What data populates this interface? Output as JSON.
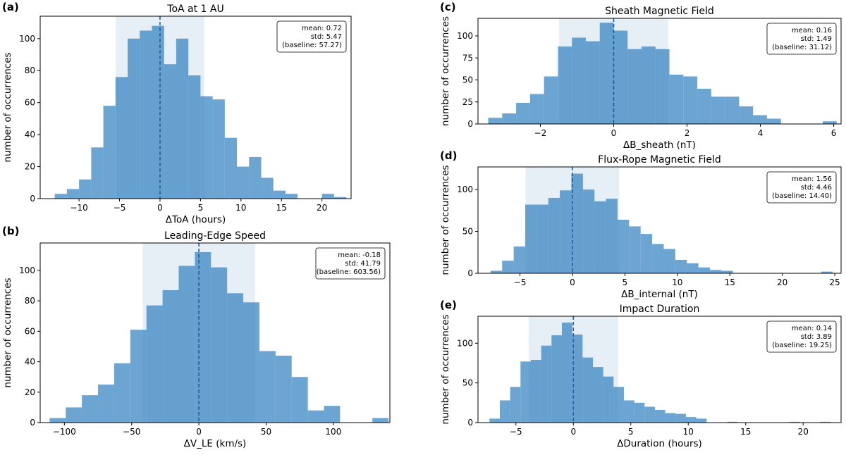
{
  "chart_data": [
    {
      "type": "bar",
      "panel_label": "(a)",
      "title": "ToA at 1 AU",
      "xlabel": "ΔToA (hours)",
      "ylabel": "number of occurrences",
      "bin_width": 1.5,
      "bins": [
        {
          "x": -13.0,
          "count": 3
        },
        {
          "x": -11.5,
          "count": 6
        },
        {
          "x": -10.0,
          "count": 12
        },
        {
          "x": -8.5,
          "count": 32
        },
        {
          "x": -7.0,
          "count": 58
        },
        {
          "x": -5.5,
          "count": 76
        },
        {
          "x": -4.0,
          "count": 100
        },
        {
          "x": -2.5,
          "count": 105
        },
        {
          "x": -1.0,
          "count": 108
        },
        {
          "x": 0.5,
          "count": 84
        },
        {
          "x": 2.0,
          "count": 100
        },
        {
          "x": 3.5,
          "count": 77
        },
        {
          "x": 5.0,
          "count": 64
        },
        {
          "x": 6.5,
          "count": 62
        },
        {
          "x": 8.0,
          "count": 38
        },
        {
          "x": 9.5,
          "count": 20
        },
        {
          "x": 11.0,
          "count": 26
        },
        {
          "x": 12.5,
          "count": 13
        },
        {
          "x": 14.0,
          "count": 5
        },
        {
          "x": 15.5,
          "count": 3
        },
        {
          "x": 17.0,
          "count": 0
        },
        {
          "x": 18.5,
          "count": 0
        },
        {
          "x": 20.0,
          "count": 3
        },
        {
          "x": 21.5,
          "count": 1
        }
      ],
      "std_band": [
        -5.47,
        5.47
      ],
      "mean_line": 0,
      "xlim": [
        -14.8,
        23.6
      ],
      "ylim": [
        0,
        114
      ],
      "xticks": [
        -10,
        -5,
        0,
        5,
        10,
        15,
        20
      ],
      "xtick_labels": [
        "−10",
        "−5",
        "0",
        "5",
        "10",
        "15",
        "20"
      ],
      "yticks": [
        0,
        20,
        40,
        60,
        80,
        100
      ],
      "ytick_labels": [
        "0",
        "20",
        "40",
        "60",
        "80",
        "100"
      ],
      "stats": [
        "mean: 0.72",
        "std: 5.47",
        "(baseline: 57.27)"
      ]
    },
    {
      "type": "bar",
      "panel_label": "(b)",
      "title": "Leading-Edge Speed",
      "xlabel": "ΔV_LE (km/s)",
      "ylabel": "number of occurrences",
      "bin_width": 12,
      "bins": [
        {
          "x": -111,
          "count": 3
        },
        {
          "x": -99,
          "count": 10
        },
        {
          "x": -87,
          "count": 18
        },
        {
          "x": -75,
          "count": 25
        },
        {
          "x": -63,
          "count": 39
        },
        {
          "x": -51,
          "count": 61
        },
        {
          "x": -39,
          "count": 77
        },
        {
          "x": -27,
          "count": 87
        },
        {
          "x": -15,
          "count": 103
        },
        {
          "x": -3,
          "count": 112
        },
        {
          "x": 9,
          "count": 102
        },
        {
          "x": 21,
          "count": 85
        },
        {
          "x": 33,
          "count": 79
        },
        {
          "x": 45,
          "count": 47
        },
        {
          "x": 57,
          "count": 44
        },
        {
          "x": 69,
          "count": 30
        },
        {
          "x": 81,
          "count": 8
        },
        {
          "x": 93,
          "count": 11
        },
        {
          "x": 105,
          "count": 0
        },
        {
          "x": 117,
          "count": 0
        },
        {
          "x": 129,
          "count": 3
        }
      ],
      "std_band": [
        -41.79,
        41.79
      ],
      "mean_line": 0,
      "xlim": [
        -118,
        142
      ],
      "ylim": [
        0,
        118
      ],
      "xticks": [
        -100,
        -50,
        0,
        50,
        100
      ],
      "xtick_labels": [
        "−100",
        "−50",
        "0",
        "50",
        "100"
      ],
      "yticks": [
        0,
        20,
        40,
        60,
        80,
        100
      ],
      "ytick_labels": [
        "0",
        "20",
        "40",
        "60",
        "80",
        "100"
      ],
      "stats": [
        "mean: -0.18",
        "std: 41.79",
        "(baseline: 603.56)"
      ]
    },
    {
      "type": "bar",
      "panel_label": "(c)",
      "title": "Sheath Magnetic Field",
      "xlabel": "ΔB_sheath (nT)",
      "ylabel": "number of occurrences",
      "bin_width": 0.38,
      "bins": [
        {
          "x": -3.42,
          "count": 7
        },
        {
          "x": -3.04,
          "count": 12
        },
        {
          "x": -2.66,
          "count": 24
        },
        {
          "x": -2.28,
          "count": 34
        },
        {
          "x": -1.9,
          "count": 54
        },
        {
          "x": -1.52,
          "count": 88
        },
        {
          "x": -1.14,
          "count": 98
        },
        {
          "x": -0.76,
          "count": 94
        },
        {
          "x": -0.38,
          "count": 115
        },
        {
          "x": 0.0,
          "count": 106
        },
        {
          "x": 0.38,
          "count": 85
        },
        {
          "x": 0.76,
          "count": 88
        },
        {
          "x": 1.14,
          "count": 85
        },
        {
          "x": 1.52,
          "count": 56
        },
        {
          "x": 1.9,
          "count": 54
        },
        {
          "x": 2.28,
          "count": 40
        },
        {
          "x": 2.66,
          "count": 31
        },
        {
          "x": 3.04,
          "count": 31
        },
        {
          "x": 3.42,
          "count": 20
        },
        {
          "x": 3.8,
          "count": 10
        },
        {
          "x": 4.18,
          "count": 6
        },
        {
          "x": 4.56,
          "count": 0
        },
        {
          "x": 4.94,
          "count": 0
        },
        {
          "x": 5.32,
          "count": 0
        },
        {
          "x": 5.7,
          "count": 3
        }
      ],
      "std_band": [
        -1.49,
        1.49
      ],
      "mean_line": 0,
      "xlim": [
        -3.7,
        6.2
      ],
      "ylim": [
        0,
        120
      ],
      "xticks": [
        -2,
        0,
        2,
        4,
        6
      ],
      "xtick_labels": [
        "−2",
        "0",
        "2",
        "4",
        "6"
      ],
      "yticks": [
        0,
        25,
        50,
        75,
        100
      ],
      "ytick_labels": [
        "0",
        "25",
        "50",
        "75",
        "100"
      ],
      "stats": [
        "mean: 0.16",
        "std: 1.49",
        "(baseline: 31.12)"
      ]
    },
    {
      "type": "bar",
      "panel_label": "(d)",
      "title": "Flux-Rope Magnetic Field",
      "xlabel": "ΔB_internal (nT)",
      "ylabel": "number of occurrences",
      "bin_width": 1.1,
      "bins": [
        {
          "x": -7.8,
          "count": 3
        },
        {
          "x": -6.7,
          "count": 15
        },
        {
          "x": -5.6,
          "count": 32
        },
        {
          "x": -4.5,
          "count": 82
        },
        {
          "x": -3.4,
          "count": 82
        },
        {
          "x": -2.3,
          "count": 90
        },
        {
          "x": -1.2,
          "count": 99
        },
        {
          "x": -0.1,
          "count": 119
        },
        {
          "x": 1.0,
          "count": 100
        },
        {
          "x": 2.1,
          "count": 86
        },
        {
          "x": 3.2,
          "count": 89
        },
        {
          "x": 4.3,
          "count": 64
        },
        {
          "x": 5.4,
          "count": 56
        },
        {
          "x": 6.5,
          "count": 47
        },
        {
          "x": 7.6,
          "count": 35
        },
        {
          "x": 8.7,
          "count": 29
        },
        {
          "x": 9.8,
          "count": 16
        },
        {
          "x": 10.9,
          "count": 12
        },
        {
          "x": 12.0,
          "count": 7
        },
        {
          "x": 13.1,
          "count": 4
        },
        {
          "x": 14.2,
          "count": 3
        },
        {
          "x": 15.3,
          "count": 0
        },
        {
          "x": 23.7,
          "count": 2
        }
      ],
      "std_band": [
        -4.46,
        4.46
      ],
      "mean_line": 0,
      "xlim": [
        -9.0,
        25.6
      ],
      "ylim": [
        0,
        127
      ],
      "xticks": [
        -5,
        0,
        5,
        10,
        15,
        20,
        25
      ],
      "xtick_labels": [
        "−5",
        "0",
        "5",
        "10",
        "15",
        "20",
        "25"
      ],
      "yticks": [
        0,
        50,
        100
      ],
      "ytick_labels": [
        "0",
        "50",
        "100"
      ],
      "stats": [
        "mean: 1.56",
        "std: 4.46",
        "(baseline: 14.40)"
      ]
    },
    {
      "type": "bar",
      "panel_label": "(e)",
      "title": "Impact Duration",
      "xlabel": "ΔDuration (hours)",
      "ylabel": "number of occurrences",
      "bin_width": 0.9,
      "bins": [
        {
          "x": -7.3,
          "count": 5
        },
        {
          "x": -6.4,
          "count": 28
        },
        {
          "x": -5.5,
          "count": 45
        },
        {
          "x": -4.6,
          "count": 77
        },
        {
          "x": -3.7,
          "count": 79
        },
        {
          "x": -2.8,
          "count": 97
        },
        {
          "x": -1.9,
          "count": 110
        },
        {
          "x": -1.0,
          "count": 126
        },
        {
          "x": -0.1,
          "count": 111
        },
        {
          "x": 0.8,
          "count": 82
        },
        {
          "x": 1.7,
          "count": 70
        },
        {
          "x": 2.6,
          "count": 58
        },
        {
          "x": 3.5,
          "count": 45
        },
        {
          "x": 4.4,
          "count": 28
        },
        {
          "x": 5.3,
          "count": 25
        },
        {
          "x": 6.2,
          "count": 20
        },
        {
          "x": 7.1,
          "count": 16
        },
        {
          "x": 8.0,
          "count": 12
        },
        {
          "x": 8.9,
          "count": 11
        },
        {
          "x": 9.8,
          "count": 7
        },
        {
          "x": 10.7,
          "count": 5
        },
        {
          "x": 11.6,
          "count": 0
        },
        {
          "x": 12.5,
          "count": 0
        },
        {
          "x": 13.4,
          "count": 1
        },
        {
          "x": 14.3,
          "count": 0
        },
        {
          "x": 18.8,
          "count": 1
        },
        {
          "x": 21.5,
          "count": 1
        }
      ],
      "std_band": [
        -3.89,
        3.89
      ],
      "mean_line": 0,
      "xlim": [
        -8.3,
        23.3
      ],
      "ylim": [
        0,
        134
      ],
      "xticks": [
        -5,
        0,
        5,
        10,
        15,
        20
      ],
      "xtick_labels": [
        "−5",
        "0",
        "5",
        "10",
        "15",
        "20"
      ],
      "yticks": [
        0,
        50,
        100
      ],
      "ytick_labels": [
        "0",
        "50",
        "100"
      ],
      "stats": [
        "mean: 0.14",
        "std: 3.89",
        "(baseline: 19.25)"
      ]
    }
  ],
  "colors": {
    "bar": "#2f7fbf",
    "bar_opacity": 0.7,
    "band": "#c8dcec",
    "band_opacity": 0.45,
    "mean_line": "#1f5f9f"
  }
}
